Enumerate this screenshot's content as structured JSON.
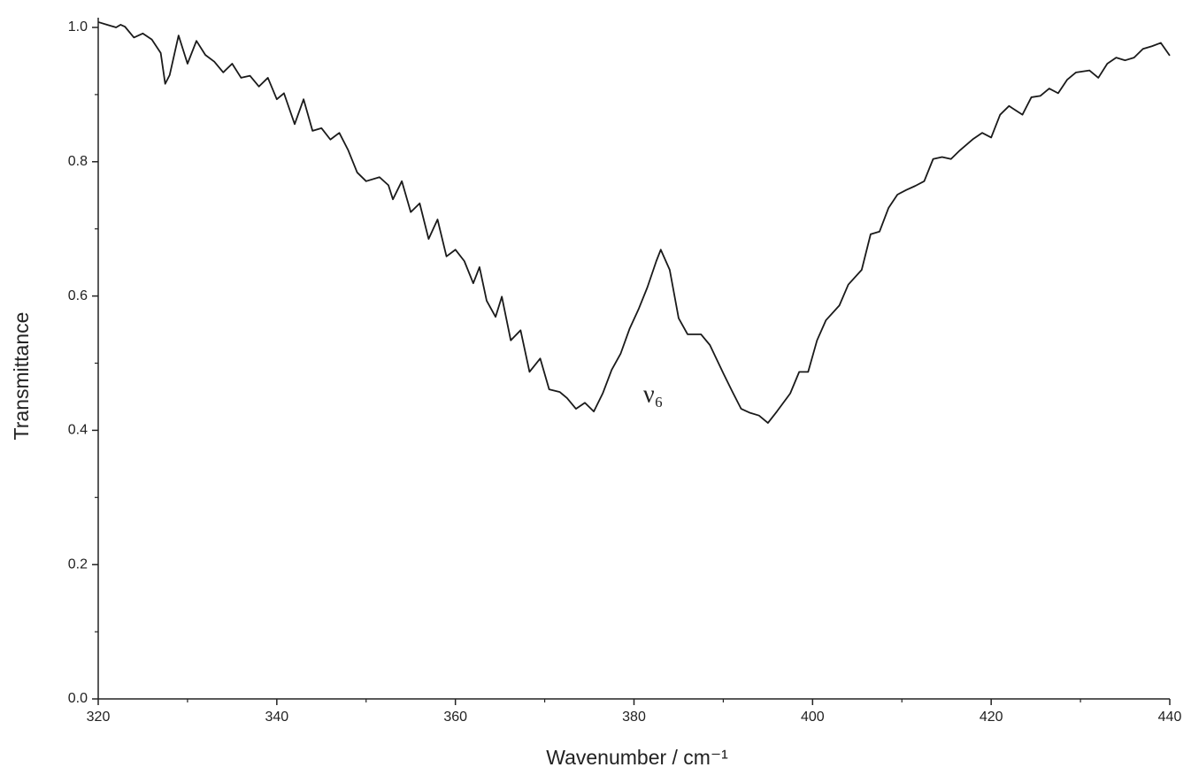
{
  "chart_data": {
    "type": "line",
    "x_label": "Wavenumber / cm⁻¹",
    "y_label": "Transmittance",
    "annotation": "ν₆",
    "xlim": [
      320,
      440
    ],
    "ylim": [
      0,
      1.03
    ],
    "xticks": [
      320,
      340,
      360,
      380,
      400,
      420,
      440
    ],
    "xminorticks": [
      330,
      350,
      370,
      390,
      410,
      430
    ],
    "yticks": [
      {
        "value": 0,
        "label": "0.0"
      },
      0.2,
      0.4,
      0.6,
      0.8,
      {
        "value": 1,
        "label": "1.0"
      }
    ],
    "yminorticks": [
      0.1,
      0.3,
      0.5,
      0.7,
      0.9
    ],
    "grid": false,
    "series": [
      {
        "color": "#1a1a1a",
        "x": [
          320,
          321,
          322,
          322.5,
          323,
          324,
          325,
          326,
          327,
          327.5,
          328,
          329,
          330,
          331,
          332,
          333,
          334,
          335,
          336,
          337,
          338,
          339,
          340,
          340.8,
          342,
          343,
          344,
          345,
          346,
          347,
          348,
          349,
          350,
          351.5,
          352.5,
          353,
          354,
          355,
          356,
          357,
          358,
          359,
          360,
          361,
          362,
          362.7,
          363.5,
          364.5,
          365.2,
          366.2,
          367.3,
          368.3,
          369.5,
          370.5,
          371.7,
          372.5,
          373.5,
          374.5,
          375.5,
          376.5,
          377.5,
          378.5,
          379.5,
          380.5,
          381.5,
          382.5,
          383,
          384,
          385,
          386,
          387.5,
          388.5,
          390,
          391,
          392,
          393,
          394,
          395,
          396,
          397.5,
          398.5,
          399.5,
          400.5,
          401.5,
          403,
          404,
          405.5,
          406.5,
          407.5,
          408.5,
          409.5,
          410.5,
          411.5,
          412.5,
          413.5,
          414.5,
          415.5,
          416.5,
          418,
          419,
          420,
          421,
          422,
          423.5,
          424.5,
          425.5,
          426.5,
          427.5,
          428.5,
          429.5,
          431,
          432,
          433,
          434,
          435,
          436,
          437,
          438,
          439,
          440
        ],
        "values": [
          1.008,
          1.004,
          1.0,
          1.004,
          1.001,
          0.985,
          0.991,
          0.982,
          0.962,
          0.916,
          0.929,
          0.988,
          0.946,
          0.98,
          0.959,
          0.949,
          0.933,
          0.946,
          0.925,
          0.928,
          0.912,
          0.925,
          0.893,
          0.902,
          0.856,
          0.893,
          0.846,
          0.85,
          0.833,
          0.843,
          0.817,
          0.784,
          0.771,
          0.777,
          0.765,
          0.744,
          0.771,
          0.725,
          0.738,
          0.685,
          0.714,
          0.659,
          0.669,
          0.652,
          0.619,
          0.643,
          0.593,
          0.569,
          0.599,
          0.534,
          0.549,
          0.487,
          0.507,
          0.461,
          0.457,
          0.448,
          0.432,
          0.441,
          0.428,
          0.455,
          0.49,
          0.514,
          0.551,
          0.58,
          0.613,
          0.652,
          0.669,
          0.639,
          0.567,
          0.543,
          0.543,
          0.527,
          0.485,
          0.458,
          0.432,
          0.426,
          0.422,
          0.411,
          0.428,
          0.455,
          0.487,
          0.487,
          0.534,
          0.564,
          0.586,
          0.617,
          0.639,
          0.692,
          0.696,
          0.731,
          0.751,
          0.758,
          0.764,
          0.771,
          0.804,
          0.807,
          0.804,
          0.817,
          0.834,
          0.843,
          0.836,
          0.87,
          0.883,
          0.87,
          0.896,
          0.898,
          0.909,
          0.902,
          0.922,
          0.933,
          0.936,
          0.925,
          0.946,
          0.955,
          0.951,
          0.955,
          0.968,
          0.972,
          0.977,
          0.958
        ]
      }
    ]
  }
}
